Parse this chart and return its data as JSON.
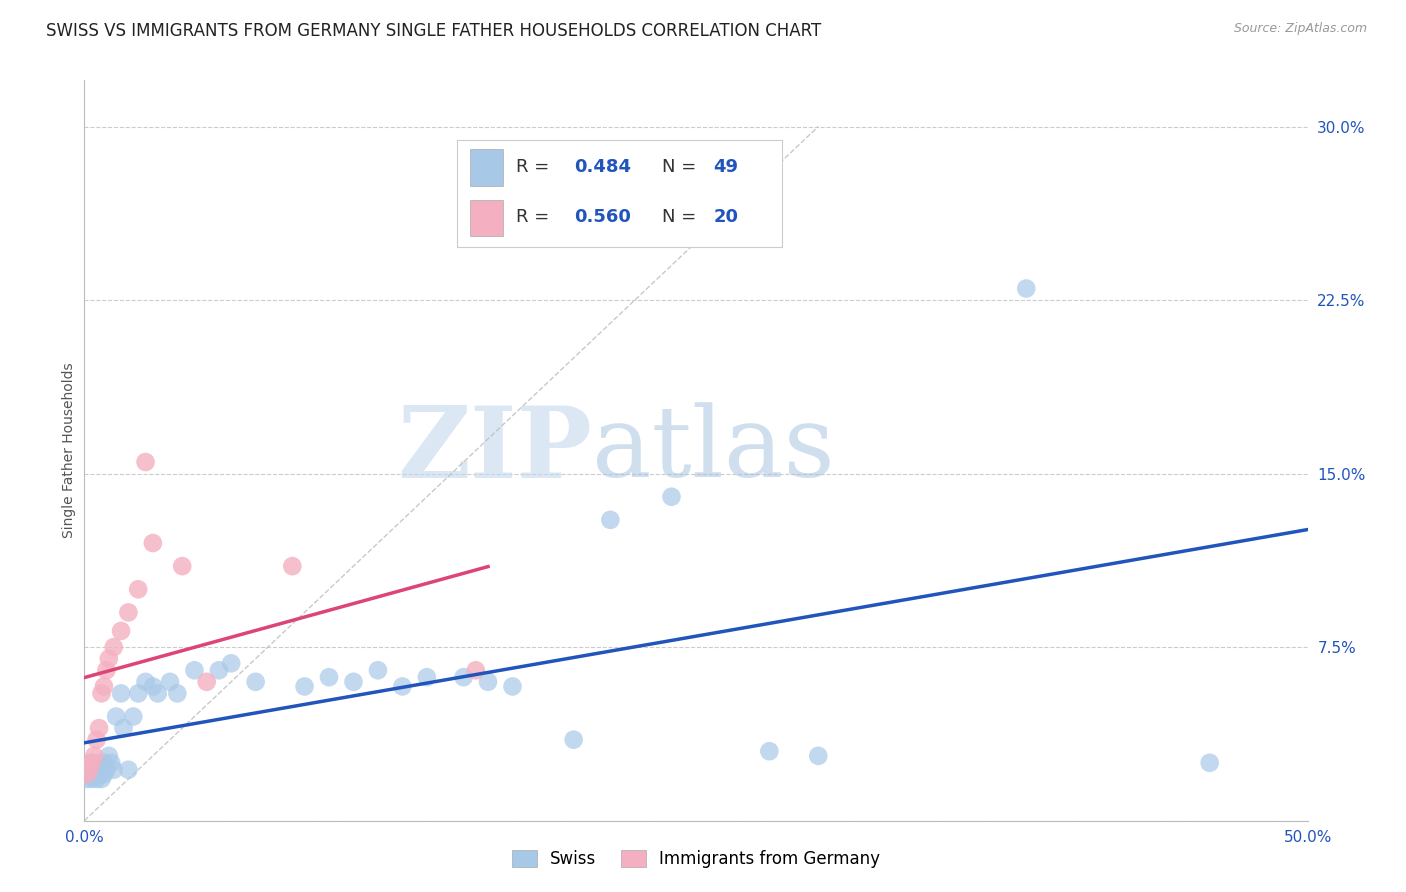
{
  "title": "SWISS VS IMMIGRANTS FROM GERMANY SINGLE FATHER HOUSEHOLDS CORRELATION CHART",
  "source": "Source: ZipAtlas.com",
  "ylabel": "Single Father Households",
  "xlim": [
    0.0,
    0.5
  ],
  "ylim": [
    0.0,
    0.32
  ],
  "xticks": [
    0.0,
    0.1,
    0.2,
    0.3,
    0.4,
    0.5
  ],
  "yticks": [
    0.0,
    0.075,
    0.15,
    0.225,
    0.3
  ],
  "grid_color": "#cccccc",
  "background_color": "#ffffff",
  "swiss_color": "#a8c8e8",
  "germany_color": "#f4b0c0",
  "swiss_line_color": "#2255bb",
  "germany_line_color": "#dd4477",
  "diag_color": "#bbbbbb",
  "swiss_R": 0.484,
  "swiss_N": 49,
  "germany_R": 0.56,
  "germany_N": 20,
  "swiss_points": [
    [
      0.001,
      0.018
    ],
    [
      0.002,
      0.022
    ],
    [
      0.002,
      0.02
    ],
    [
      0.003,
      0.025
    ],
    [
      0.003,
      0.018
    ],
    [
      0.004,
      0.02
    ],
    [
      0.005,
      0.022
    ],
    [
      0.005,
      0.018
    ],
    [
      0.006,
      0.025
    ],
    [
      0.006,
      0.02
    ],
    [
      0.007,
      0.022
    ],
    [
      0.007,
      0.018
    ],
    [
      0.008,
      0.025
    ],
    [
      0.008,
      0.02
    ],
    [
      0.009,
      0.022
    ],
    [
      0.01,
      0.028
    ],
    [
      0.011,
      0.025
    ],
    [
      0.012,
      0.022
    ],
    [
      0.013,
      0.045
    ],
    [
      0.015,
      0.055
    ],
    [
      0.016,
      0.04
    ],
    [
      0.018,
      0.022
    ],
    [
      0.02,
      0.045
    ],
    [
      0.022,
      0.055
    ],
    [
      0.025,
      0.06
    ],
    [
      0.028,
      0.058
    ],
    [
      0.03,
      0.055
    ],
    [
      0.035,
      0.06
    ],
    [
      0.038,
      0.055
    ],
    [
      0.045,
      0.065
    ],
    [
      0.055,
      0.065
    ],
    [
      0.06,
      0.068
    ],
    [
      0.07,
      0.06
    ],
    [
      0.09,
      0.058
    ],
    [
      0.1,
      0.062
    ],
    [
      0.11,
      0.06
    ],
    [
      0.12,
      0.065
    ],
    [
      0.13,
      0.058
    ],
    [
      0.14,
      0.062
    ],
    [
      0.155,
      0.062
    ],
    [
      0.165,
      0.06
    ],
    [
      0.175,
      0.058
    ],
    [
      0.2,
      0.035
    ],
    [
      0.215,
      0.13
    ],
    [
      0.24,
      0.14
    ],
    [
      0.28,
      0.03
    ],
    [
      0.3,
      0.028
    ],
    [
      0.385,
      0.23
    ],
    [
      0.46,
      0.025
    ]
  ],
  "germany_points": [
    [
      0.001,
      0.02
    ],
    [
      0.002,
      0.022
    ],
    [
      0.003,
      0.025
    ],
    [
      0.004,
      0.028
    ],
    [
      0.005,
      0.035
    ],
    [
      0.006,
      0.04
    ],
    [
      0.007,
      0.055
    ],
    [
      0.008,
      0.058
    ],
    [
      0.009,
      0.065
    ],
    [
      0.01,
      0.07
    ],
    [
      0.012,
      0.075
    ],
    [
      0.015,
      0.082
    ],
    [
      0.018,
      0.09
    ],
    [
      0.022,
      0.1
    ],
    [
      0.025,
      0.155
    ],
    [
      0.028,
      0.12
    ],
    [
      0.04,
      0.11
    ],
    [
      0.05,
      0.06
    ],
    [
      0.085,
      0.11
    ],
    [
      0.16,
      0.065
    ]
  ],
  "watermark_zip": "ZIP",
  "watermark_atlas": "atlas",
  "title_fontsize": 12,
  "axis_label_fontsize": 10,
  "tick_fontsize": 11,
  "legend_fontsize": 13
}
